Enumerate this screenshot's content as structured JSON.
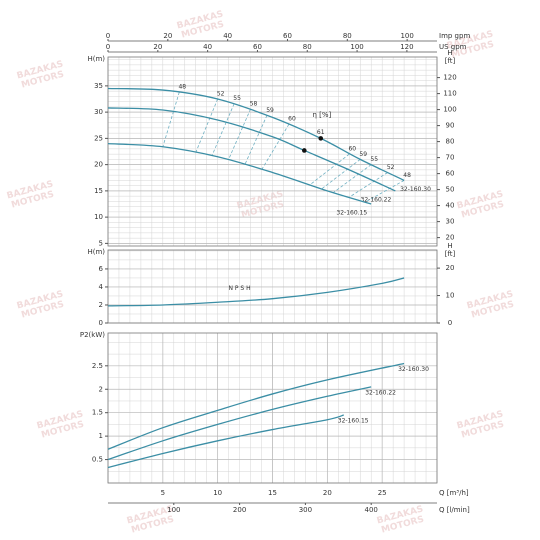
{
  "watermark": [
    "BAZAKAS",
    "MOTORS"
  ],
  "chart_data": [
    {
      "type": "line",
      "ylabel": "H(m)",
      "y2label": [
        "H",
        "[ft]"
      ],
      "xlim": [
        0,
        30
      ],
      "ylim": [
        4.5,
        40.5
      ],
      "yticks": [
        5,
        10,
        15,
        20,
        25,
        30,
        35
      ],
      "y2lim": [
        14.76,
        132.87
      ],
      "y2ticks": [
        20,
        30,
        40,
        50,
        60,
        70,
        80,
        90,
        100,
        110,
        120
      ],
      "imp_gpm": {
        "label": "Imp gpm",
        "ticks": [
          {
            "value": 0,
            "label": "0"
          },
          {
            "value": 5.455,
            "label": "20"
          },
          {
            "value": 10.911,
            "label": "40"
          },
          {
            "value": 16.366,
            "label": "60"
          },
          {
            "value": 21.821,
            "label": "80"
          },
          {
            "value": 27.277,
            "label": "100"
          }
        ]
      },
      "us_gpm": {
        "label": "US gpm",
        "ticks": [
          {
            "value": 0,
            "label": "0"
          },
          {
            "value": 4.543,
            "label": "20"
          },
          {
            "value": 9.085,
            "label": "40"
          },
          {
            "value": 13.628,
            "label": "60"
          },
          {
            "value": 18.17,
            "label": "80"
          },
          {
            "value": 22.713,
            "label": "100"
          },
          {
            "value": 27.255,
            "label": "120"
          }
        ]
      },
      "grid": true,
      "x_minor_step": 1,
      "y_minor_step": 1,
      "color": "#3b8ea5",
      "series": [
        {
          "name": "32-160.30",
          "x": [
            0,
            5,
            10,
            15,
            19.4,
            23,
            27
          ],
          "values": [
            34.5,
            34.2,
            32.5,
            29,
            25,
            21,
            17
          ]
        },
        {
          "name": "32-160.22",
          "x": [
            0,
            5,
            10,
            15,
            17.9,
            22,
            26.2
          ],
          "values": [
            30.8,
            30.4,
            28.5,
            25.3,
            22.7,
            19,
            15
          ]
        },
        {
          "name": "32-160.15",
          "x": [
            0,
            5,
            10,
            15,
            20,
            24
          ],
          "values": [
            24,
            23.4,
            21.5,
            18.5,
            15,
            12.5
          ]
        }
      ],
      "efficiency_label": "η [%]",
      "efficiency_color": "#6fb0c2",
      "efficiency_lines": [
        {
          "value": 48,
          "x": [
            6.5,
            5
          ],
          "y": [
            33.8,
            23.4
          ]
        },
        {
          "value": 52,
          "x": [
            10,
            8
          ],
          "y": [
            32.5,
            22.3
          ]
        },
        {
          "value": 55,
          "x": [
            11.5,
            9.5
          ],
          "y": [
            31.6,
            21.8
          ]
        },
        {
          "value": 58,
          "x": [
            13,
            11
          ],
          "y": [
            30.6,
            21
          ]
        },
        {
          "value": 59,
          "x": [
            14.5,
            12.5
          ],
          "y": [
            29.4,
            20.1
          ]
        },
        {
          "value": 60,
          "x": [
            16.5,
            14
          ],
          "y": [
            27.7,
            19
          ]
        },
        {
          "value": 60,
          "x": [
            22,
            18.5
          ],
          "y": [
            22,
            16.3
          ]
        },
        {
          "value": 59,
          "x": [
            23,
            19.5
          ],
          "y": [
            21,
            15.4
          ]
        },
        {
          "value": 55,
          "x": [
            24,
            20.5
          ],
          "y": [
            20,
            14.6
          ]
        },
        {
          "value": 52,
          "x": [
            25.5,
            22
          ],
          "y": [
            18.5,
            13.8
          ]
        },
        {
          "value": 48,
          "x": [
            27,
            23.5
          ],
          "y": [
            17,
            12.9
          ]
        }
      ],
      "best_efficiency": {
        "value": 61,
        "x": [
          19.4,
          17.9
        ],
        "y": [
          25,
          22.7
        ]
      }
    },
    {
      "type": "line",
      "ylabel": "H(m)",
      "y2label": [
        "H",
        "[ft]"
      ],
      "xlim": [
        0,
        30
      ],
      "ylim": [
        0,
        8.1
      ],
      "yticks": [
        0,
        2,
        4,
        6
      ],
      "y2lim": [
        0,
        26.6
      ],
      "y2ticks": [
        0,
        10,
        20
      ],
      "grid": true,
      "x_minor_step": 1,
      "y_minor_step": 1,
      "color": "#3b8ea5",
      "series": [
        {
          "name": "N P S H",
          "x": [
            0,
            5,
            10,
            15,
            20,
            25,
            27
          ],
          "values": [
            1.9,
            2.0,
            2.3,
            2.7,
            3.4,
            4.4,
            5
          ]
        }
      ]
    },
    {
      "type": "line",
      "ylabel": "P2(kW)",
      "xlim": [
        0,
        30
      ],
      "ylim": [
        0,
        3.2
      ],
      "yticks": [
        0.5,
        1,
        1.5,
        2,
        2.5
      ],
      "xlabel": "Q [m³/h]",
      "xticks": [
        5,
        10,
        15,
        20,
        25
      ],
      "lpm": {
        "label": "Q [l/min]",
        "ticks": [
          {
            "value": 6,
            "label": "100"
          },
          {
            "value": 12,
            "label": "200"
          },
          {
            "value": 18,
            "label": "300"
          },
          {
            "value": 24,
            "label": "400"
          }
        ]
      },
      "grid": true,
      "x_minor_step": 1,
      "y_minor_step": 0.25,
      "color": "#3b8ea5",
      "series": [
        {
          "name": "32-160.30",
          "x": [
            0,
            5,
            10,
            15,
            20,
            27
          ],
          "values": [
            0.72,
            1.18,
            1.55,
            1.9,
            2.2,
            2.55
          ]
        },
        {
          "name": "32-160.22",
          "x": [
            0,
            5,
            10,
            15,
            20,
            24
          ],
          "values": [
            0.5,
            0.9,
            1.25,
            1.57,
            1.85,
            2.05
          ]
        },
        {
          "name": "32-160.15",
          "x": [
            0,
            5,
            10,
            15,
            20,
            21.5
          ],
          "values": [
            0.33,
            0.63,
            0.9,
            1.14,
            1.35,
            1.45
          ]
        }
      ]
    }
  ]
}
